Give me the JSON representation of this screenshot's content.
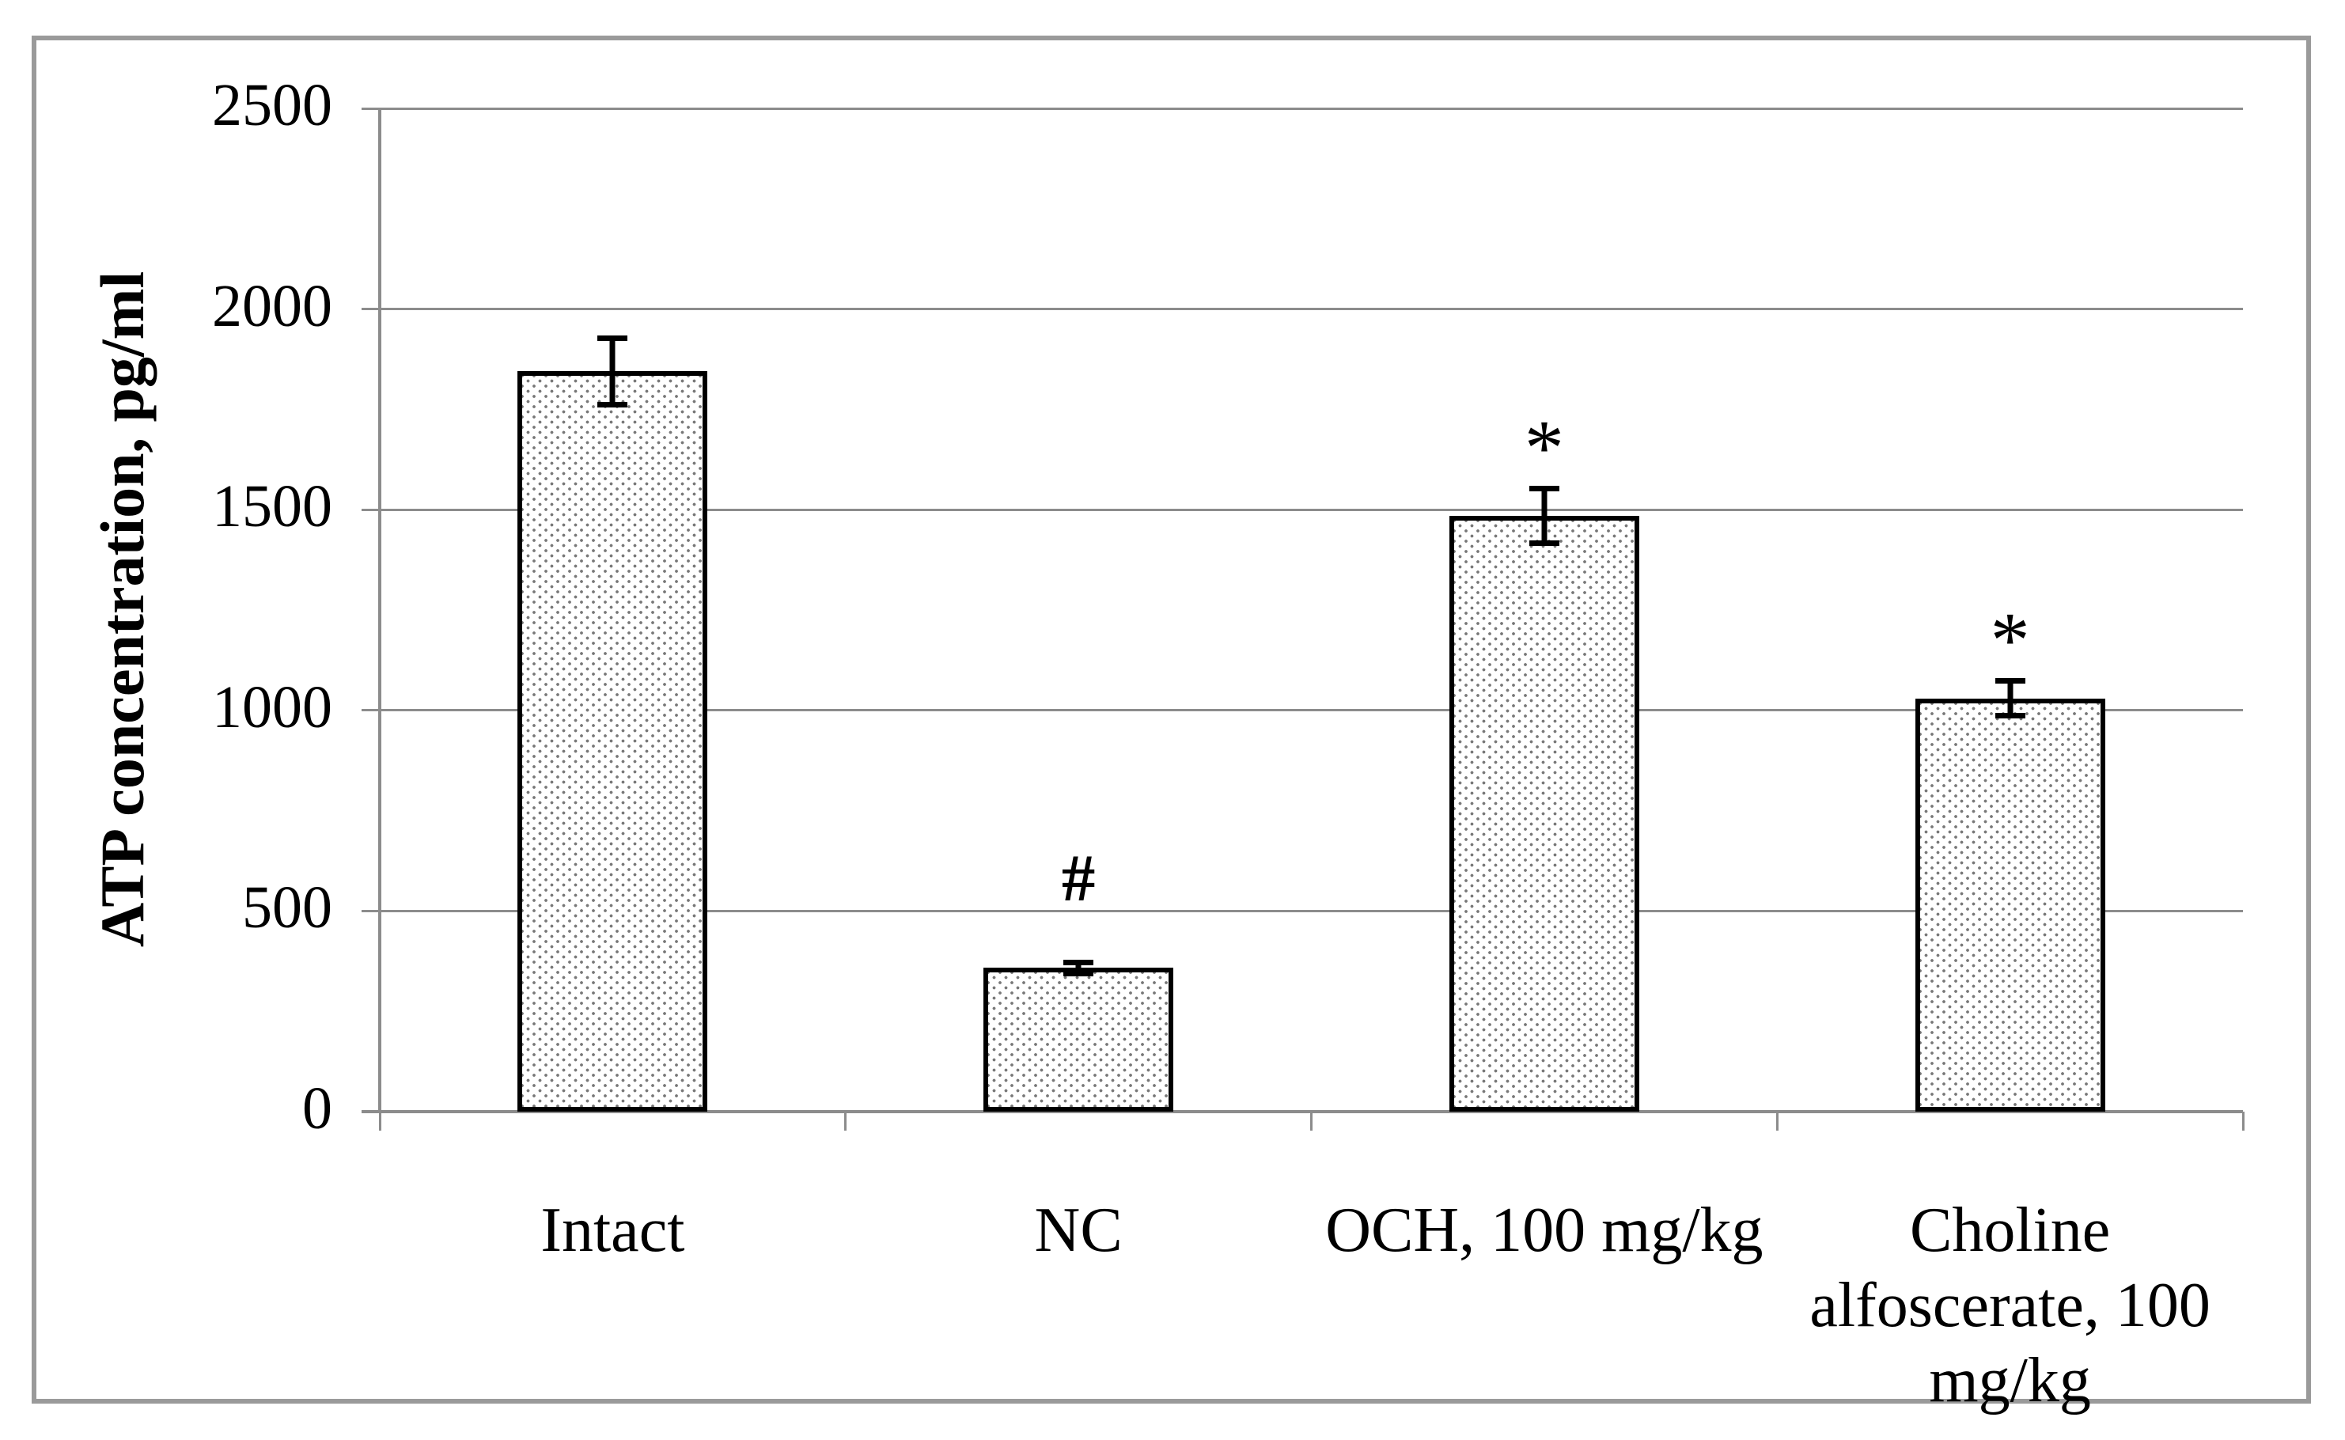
{
  "figure": {
    "background_color": "#ffffff",
    "frame_color": "#9a9a9a",
    "gridline_color": "#8c8c8c",
    "bar_border_color": "#000000",
    "bar_fill": "white-with-gray-dot-pattern",
    "error_bar_color": "#000000",
    "text_color": "#000000"
  },
  "chart_data": {
    "type": "bar",
    "title": "",
    "xlabel": "",
    "ylabel": "ATP concentration, pg/ml",
    "categories": [
      "Intact",
      "NC",
      "OCH, 100 mg/kg",
      "Choline\nalfoscerate, 100\nmg/kg"
    ],
    "values": [
      1845,
      358,
      1485,
      1030
    ],
    "errors": [
      90,
      20,
      75,
      50
    ],
    "annotations": [
      "",
      "#",
      "*",
      "*"
    ],
    "ylim": [
      0,
      2500
    ],
    "yticks": [
      0,
      500,
      1000,
      1500,
      2000,
      2500
    ],
    "grid": true,
    "legend": "none",
    "bar_pattern": "dotted",
    "significance_notes": {
      "hash": "# above NC bar",
      "star": "* above OCH, 100 mg/kg and Choline alfoscerate, 100 mg/kg bars"
    }
  }
}
